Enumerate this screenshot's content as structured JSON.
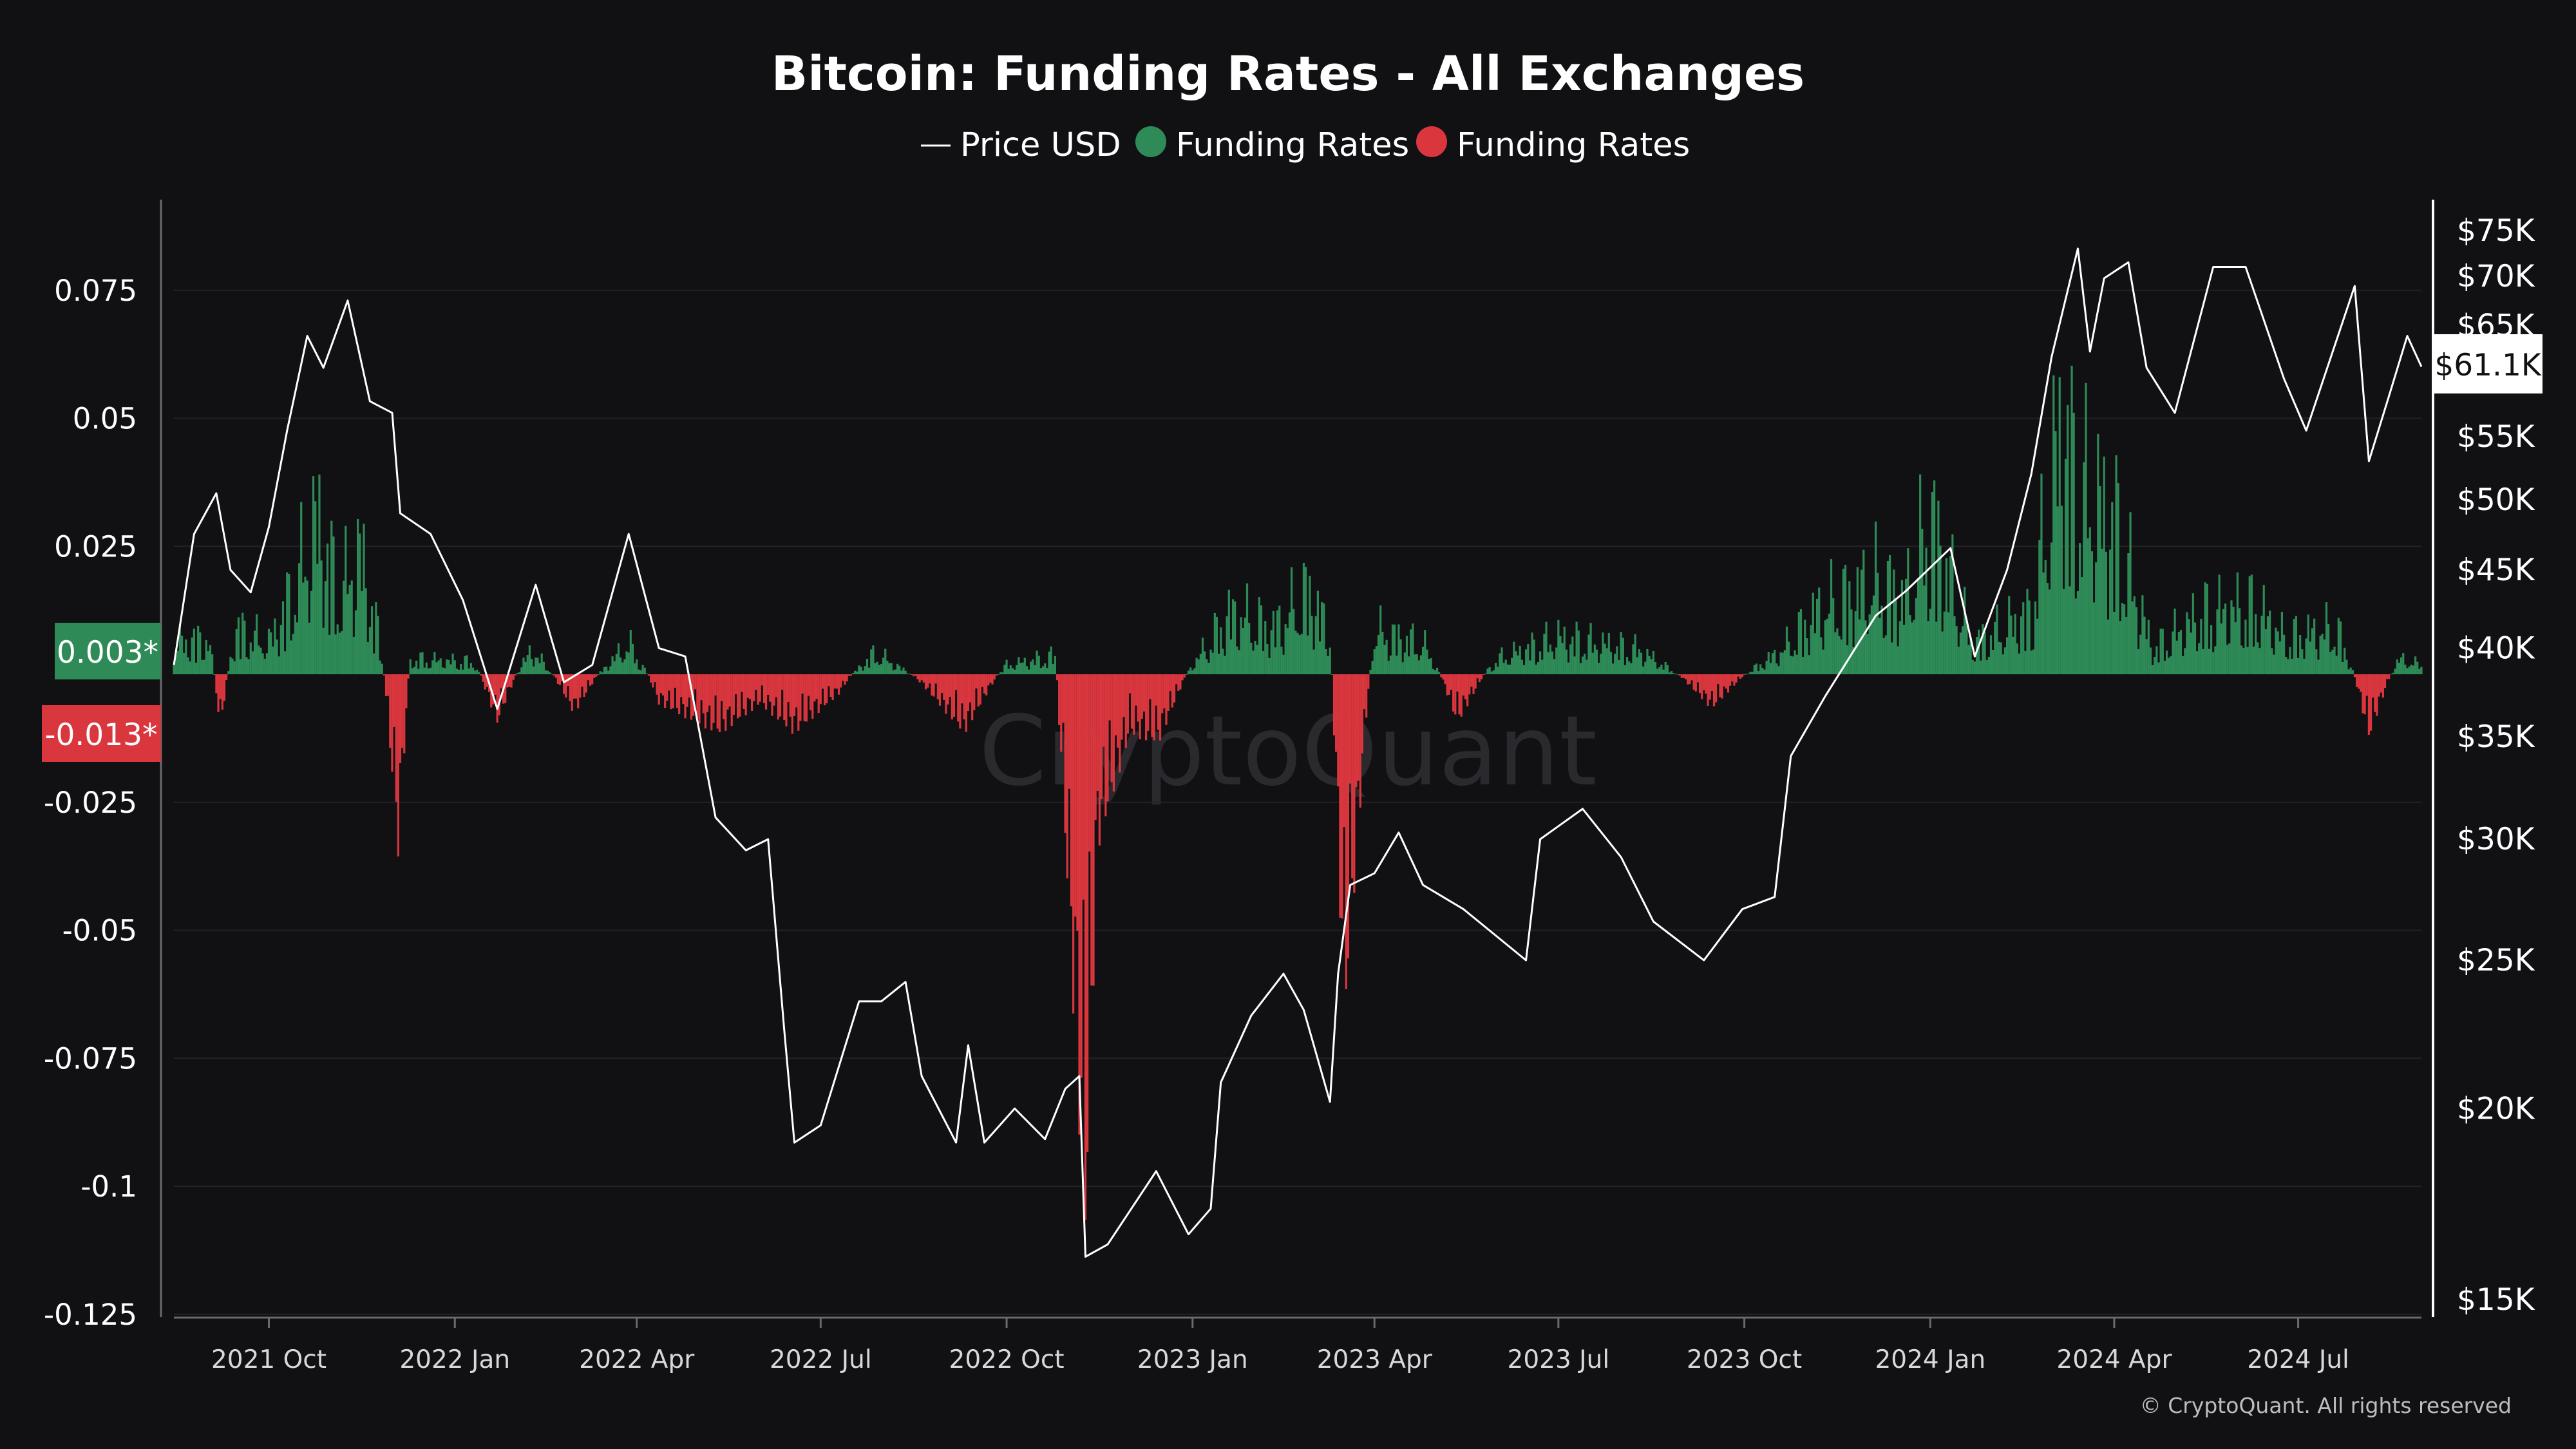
{
  "chart_data": {
    "type": "bar",
    "title": "Bitcoin: Funding Rates - All Exchanges",
    "legend": {
      "placement": "top-center",
      "items": [
        {
          "label": "Price USD",
          "marker": "line",
          "color": "#ffffff"
        },
        {
          "label": "Funding Rates",
          "marker": "dot",
          "color": "#2e8b57"
        },
        {
          "label": "Funding Rates",
          "marker": "dot",
          "color": "#d9363e"
        }
      ]
    },
    "left_axis": {
      "ylim": [
        -0.125,
        0.085
      ],
      "ticks": [
        0.075,
        0.05,
        0.025,
        0,
        -0.025,
        -0.05,
        -0.075,
        -0.1,
        -0.125
      ],
      "tick_labels": [
        "0.075",
        "0.05",
        "0.025",
        "",
        "-0.025",
        "-0.05",
        "-0.075",
        "-0.1",
        "-0.125"
      ]
    },
    "right_axis": {
      "scale": "log",
      "ylim": [
        15000,
        75000
      ],
      "ticks": [
        75000,
        70000,
        65000,
        55000,
        50000,
        45000,
        40000,
        35000,
        30000,
        25000,
        20000,
        15000
      ],
      "tick_labels": [
        "$75K",
        "$70K",
        "$65K",
        "$55K",
        "$50K",
        "$45K",
        "$40K",
        "$35K",
        "$30K",
        "$25K",
        "$20K",
        "$15K"
      ]
    },
    "x_axis": {
      "range": [
        "2021-08-15",
        "2024-08-31"
      ],
      "ticks": [
        "2021-10-01",
        "2022-01-01",
        "2022-04-01",
        "2022-07-01",
        "2022-10-01",
        "2023-01-01",
        "2023-04-01",
        "2023-07-01",
        "2023-10-01",
        "2024-01-01",
        "2024-04-01",
        "2024-07-01"
      ],
      "tick_labels": [
        "2021 Oct",
        "2022 Jan",
        "2022 Apr",
        "2022 Jul",
        "2022 Oct",
        "2023 Jan",
        "2023 Apr",
        "2023 Jul",
        "2023 Oct",
        "2024 Jan",
        "2024 Apr",
        "2024 Jul"
      ]
    },
    "grid": true,
    "badges": {
      "current_positive": "0.003*",
      "current_negative": "-0.013*",
      "current_price": "$61.1K"
    },
    "series": [
      {
        "name": "Price USD",
        "type": "line",
        "axis": "right",
        "color": "#ffffff",
        "points": [
          [
            "2021-08-15",
            39000
          ],
          [
            "2021-08-25",
            47500
          ],
          [
            "2021-09-05",
            50500
          ],
          [
            "2021-09-12",
            45000
          ],
          [
            "2021-09-22",
            43500
          ],
          [
            "2021-10-01",
            48000
          ],
          [
            "2021-10-10",
            55500
          ],
          [
            "2021-10-20",
            64000
          ],
          [
            "2021-10-28",
            61000
          ],
          [
            "2021-11-09",
            67500
          ],
          [
            "2021-11-20",
            58000
          ],
          [
            "2021-12-01",
            57000
          ],
          [
            "2021-12-05",
            49000
          ],
          [
            "2021-12-20",
            47500
          ],
          [
            "2022-01-05",
            43000
          ],
          [
            "2022-01-22",
            36500
          ],
          [
            "2022-02-10",
            44000
          ],
          [
            "2022-02-24",
            38000
          ],
          [
            "2022-03-10",
            39000
          ],
          [
            "2022-03-28",
            47500
          ],
          [
            "2022-04-12",
            40000
          ],
          [
            "2022-04-25",
            39500
          ],
          [
            "2022-05-10",
            31000
          ],
          [
            "2022-05-25",
            29500
          ],
          [
            "2022-06-05",
            30000
          ],
          [
            "2022-06-13",
            22500
          ],
          [
            "2022-06-18",
            19000
          ],
          [
            "2022-07-01",
            19500
          ],
          [
            "2022-07-20",
            23500
          ],
          [
            "2022-07-31",
            23500
          ],
          [
            "2022-08-12",
            24200
          ],
          [
            "2022-08-20",
            21000
          ],
          [
            "2022-09-06",
            19000
          ],
          [
            "2022-09-12",
            22000
          ],
          [
            "2022-09-20",
            19000
          ],
          [
            "2022-10-05",
            20000
          ],
          [
            "2022-10-20",
            19100
          ],
          [
            "2022-10-30",
            20600
          ],
          [
            "2022-11-06",
            21000
          ],
          [
            "2022-11-09",
            16000
          ],
          [
            "2022-11-20",
            16300
          ],
          [
            "2022-12-14",
            18200
          ],
          [
            "2022-12-30",
            16550
          ],
          [
            "2023-01-10",
            17200
          ],
          [
            "2023-01-15",
            20800
          ],
          [
            "2023-01-30",
            23000
          ],
          [
            "2023-02-15",
            24500
          ],
          [
            "2023-02-25",
            23200
          ],
          [
            "2023-03-10",
            20200
          ],
          [
            "2023-03-14",
            24500
          ],
          [
            "2023-03-20",
            28000
          ],
          [
            "2023-04-01",
            28500
          ],
          [
            "2023-04-13",
            30300
          ],
          [
            "2023-04-25",
            28000
          ],
          [
            "2023-05-15",
            27000
          ],
          [
            "2023-06-15",
            25000
          ],
          [
            "2023-06-22",
            30000
          ],
          [
            "2023-07-13",
            31400
          ],
          [
            "2023-08-01",
            29200
          ],
          [
            "2023-08-17",
            26500
          ],
          [
            "2023-09-11",
            25000
          ],
          [
            "2023-09-30",
            27000
          ],
          [
            "2023-10-16",
            27500
          ],
          [
            "2023-10-24",
            34000
          ],
          [
            "2023-11-10",
            37200
          ],
          [
            "2023-12-05",
            42000
          ],
          [
            "2023-12-20",
            43600
          ],
          [
            "2024-01-11",
            46500
          ],
          [
            "2024-01-23",
            39500
          ],
          [
            "2024-02-08",
            45000
          ],
          [
            "2024-02-20",
            52000
          ],
          [
            "2024-03-01",
            62000
          ],
          [
            "2024-03-14",
            73000
          ],
          [
            "2024-03-20",
            62500
          ],
          [
            "2024-03-27",
            69800
          ],
          [
            "2024-04-08",
            71500
          ],
          [
            "2024-04-17",
            61000
          ],
          [
            "2024-05-01",
            57000
          ],
          [
            "2024-05-20",
            71000
          ],
          [
            "2024-06-05",
            71000
          ],
          [
            "2024-06-24",
            60000
          ],
          [
            "2024-07-05",
            55500
          ],
          [
            "2024-07-29",
            69000
          ],
          [
            "2024-08-05",
            53000
          ],
          [
            "2024-08-15",
            58500
          ],
          [
            "2024-08-24",
            64000
          ],
          [
            "2024-08-31",
            61100
          ]
        ]
      },
      {
        "name": "Funding Rates",
        "type": "bar",
        "axis": "left",
        "color_positive": "#2e8b57",
        "color_negative": "#d9363e",
        "segments": [
          [
            "2021-08-15",
            0.01
          ],
          [
            "2021-09-01",
            0.012
          ],
          [
            "2021-09-07",
            -0.012
          ],
          [
            "2021-09-15",
            0.015
          ],
          [
            "2021-10-01",
            0.01
          ],
          [
            "2021-10-15",
            0.03
          ],
          [
            "2021-10-25",
            0.05
          ],
          [
            "2021-11-05",
            0.025
          ],
          [
            "2021-11-15",
            0.04
          ],
          [
            "2021-11-25",
            0.01
          ],
          [
            "2021-12-04",
            -0.036
          ],
          [
            "2021-12-10",
            0.005
          ],
          [
            "2022-01-10",
            0.004
          ],
          [
            "2022-01-22",
            -0.01
          ],
          [
            "2022-02-08",
            0.008
          ],
          [
            "2022-03-01",
            -0.008
          ],
          [
            "2022-03-28",
            0.01
          ],
          [
            "2022-04-12",
            -0.006
          ],
          [
            "2022-05-12",
            -0.012
          ],
          [
            "2022-06-01",
            -0.006
          ],
          [
            "2022-06-18",
            -0.012
          ],
          [
            "2022-07-10",
            -0.004
          ],
          [
            "2022-07-28",
            0.007
          ],
          [
            "2022-08-20",
            -0.002
          ],
          [
            "2022-09-10",
            -0.012
          ],
          [
            "2022-10-01",
            0.003
          ],
          [
            "2022-10-25",
            0.006
          ],
          [
            "2022-11-09",
            -0.115
          ],
          [
            "2022-11-15",
            -0.035
          ],
          [
            "2022-12-01",
            -0.012
          ],
          [
            "2022-12-15",
            -0.014
          ],
          [
            "2023-01-01",
            0.003
          ],
          [
            "2023-01-20",
            0.02
          ],
          [
            "2023-02-10",
            0.015
          ],
          [
            "2023-02-28",
            0.027
          ],
          [
            "2023-03-10",
            0.012
          ],
          [
            "2023-03-17",
            -0.072
          ],
          [
            "2023-04-01",
            0.014
          ],
          [
            "2023-04-25",
            0.01
          ],
          [
            "2023-05-12",
            -0.01
          ],
          [
            "2023-06-01",
            0.005
          ],
          [
            "2023-07-01",
            0.012
          ],
          [
            "2023-08-10",
            0.008
          ],
          [
            "2023-09-15",
            -0.007
          ],
          [
            "2023-10-20",
            0.008
          ],
          [
            "2023-11-05",
            0.02
          ],
          [
            "2023-12-05",
            0.03
          ],
          [
            "2023-12-20",
            0.025
          ],
          [
            "2024-01-01",
            0.05
          ],
          [
            "2024-01-22",
            0.01
          ],
          [
            "2024-02-20",
            0.02
          ],
          [
            "2024-03-01",
            0.06
          ],
          [
            "2024-03-06",
            0.082
          ],
          [
            "2024-03-14",
            0.06
          ],
          [
            "2024-04-01",
            0.05
          ],
          [
            "2024-04-20",
            0.008
          ],
          [
            "2024-05-15",
            0.02
          ],
          [
            "2024-06-10",
            0.022
          ],
          [
            "2024-06-24",
            0.012
          ],
          [
            "2024-07-20",
            0.015
          ],
          [
            "2024-08-05",
            -0.013
          ],
          [
            "2024-08-20",
            0.005
          ],
          [
            "2024-08-31",
            0.003
          ]
        ]
      }
    ]
  },
  "watermark": "CryptoQuant",
  "copyright": "© CryptoQuant. All rights reserved"
}
